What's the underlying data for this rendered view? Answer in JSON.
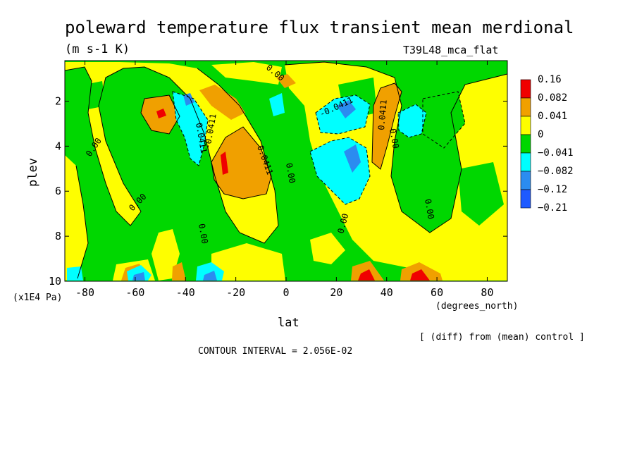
{
  "title": "poleward temperature flux transient mean merdional",
  "units": "(m s-1 K)",
  "experiment": "T39L48_mca_flat",
  "ylabel": "plev",
  "yunit": "(x1E4 Pa)",
  "xlabel": "lat",
  "xunit": "(degrees_north)",
  "note": "[ (diff) from (mean) control ]",
  "contour_interval": "CONTOUR INTERVAL = 2.056E-02",
  "colors": {
    "red": "#f00000",
    "orange": "#f0a000",
    "yellow": "#fefe00",
    "green": "#00d700",
    "cyan": "#00ffff",
    "blue": "#2b8cf0",
    "darkblue": "#1e5aff"
  },
  "legend": [
    {
      "label": "0.16",
      "color": "#f00000"
    },
    {
      "label": "0.082",
      "color": "#f0a000"
    },
    {
      "label": "0.041",
      "color": "#fefe00"
    },
    {
      "label": "0",
      "color": "#00d700"
    },
    {
      "label": "−0.041",
      "color": "#00ffff"
    },
    {
      "label": "−0.082",
      "color": "#2b8cf0"
    },
    {
      "label": "−0.12",
      "color": "#1e5aff"
    },
    {
      "label": "−0.21",
      "color": null
    }
  ],
  "contour_labels": [
    "0.00",
    "0.00",
    "0.00",
    "0.00",
    "0.00",
    "0.00",
    "0.00",
    "0.00",
    "0.0411",
    "0.0411",
    "0.0411",
    "-0.0411",
    "-0.0411"
  ],
  "chart_data": {
    "type": "heatmap",
    "title": "poleward temperature flux transient mean merdional",
    "xlabel": "lat",
    "ylabel": "plev",
    "xlim": [
      -88,
      88
    ],
    "ylim": [
      10,
      0.2
    ],
    "x_ticks": [
      -80,
      -60,
      -40,
      -20,
      0,
      20,
      40,
      60,
      80
    ],
    "y_ticks": [
      2,
      4,
      6,
      8,
      10
    ],
    "contour_interval": 0.02056,
    "levels": [
      -0.21,
      -0.12,
      -0.082,
      -0.041,
      0,
      0.041,
      0.082,
      0.16
    ],
    "features": [
      {
        "lat": -51,
        "plev": 2.5,
        "value": 0.16,
        "note": "red maximum"
      },
      {
        "lat": -25,
        "plev": 4.5,
        "value": 0.16,
        "note": "red maximum"
      },
      {
        "lat": -15,
        "plev": 4.5,
        "value": 0.082,
        "note": "orange region"
      },
      {
        "lat": -38,
        "plev": 3.0,
        "value": -0.082,
        "note": "cyan/blue region"
      },
      {
        "lat": 24,
        "plev": 4.5,
        "value": -0.082,
        "note": "cyan/blue region"
      },
      {
        "lat": 40,
        "plev": 2.5,
        "value": 0.082,
        "note": "orange band"
      },
      {
        "lat": 32,
        "plev": 9.9,
        "value": 0.16,
        "note": "surface maximum"
      },
      {
        "lat": 52,
        "plev": 9.9,
        "value": 0.16,
        "note": "surface maximum"
      }
    ]
  }
}
